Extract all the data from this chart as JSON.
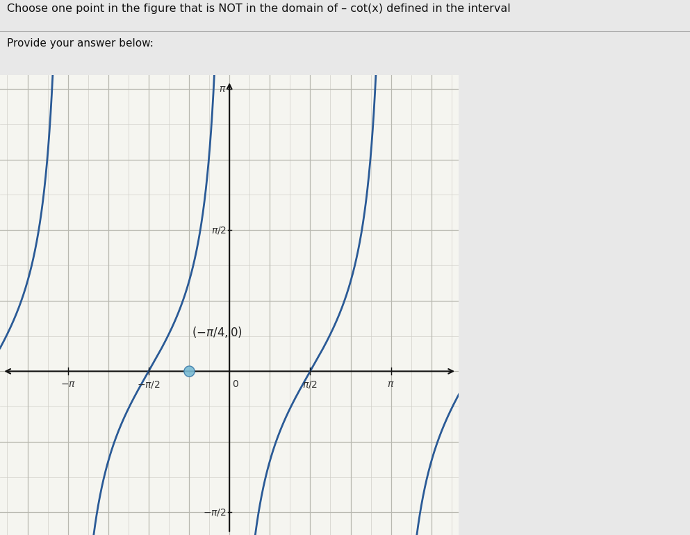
{
  "title_text": "Choose one point in the figure that is NOT in the domain of – cot(x) defined in the interval",
  "subtitle_text": "Provide your answer below:",
  "page_bg_color": "#e8e8e8",
  "plot_bg_color": "#f5f5f0",
  "curve_color": "#2a5a96",
  "curve_linewidth": 2.0,
  "grid_color_minor": "#d0cfc8",
  "grid_color_major": "#b8b8b0",
  "axis_color": "#111111",
  "point_color": "#7abcd4",
  "point_edge_color": "#3a7aaa",
  "figsize": [
    9.93,
    7.7
  ],
  "dpi": 100,
  "pi": 3.141592653589793
}
